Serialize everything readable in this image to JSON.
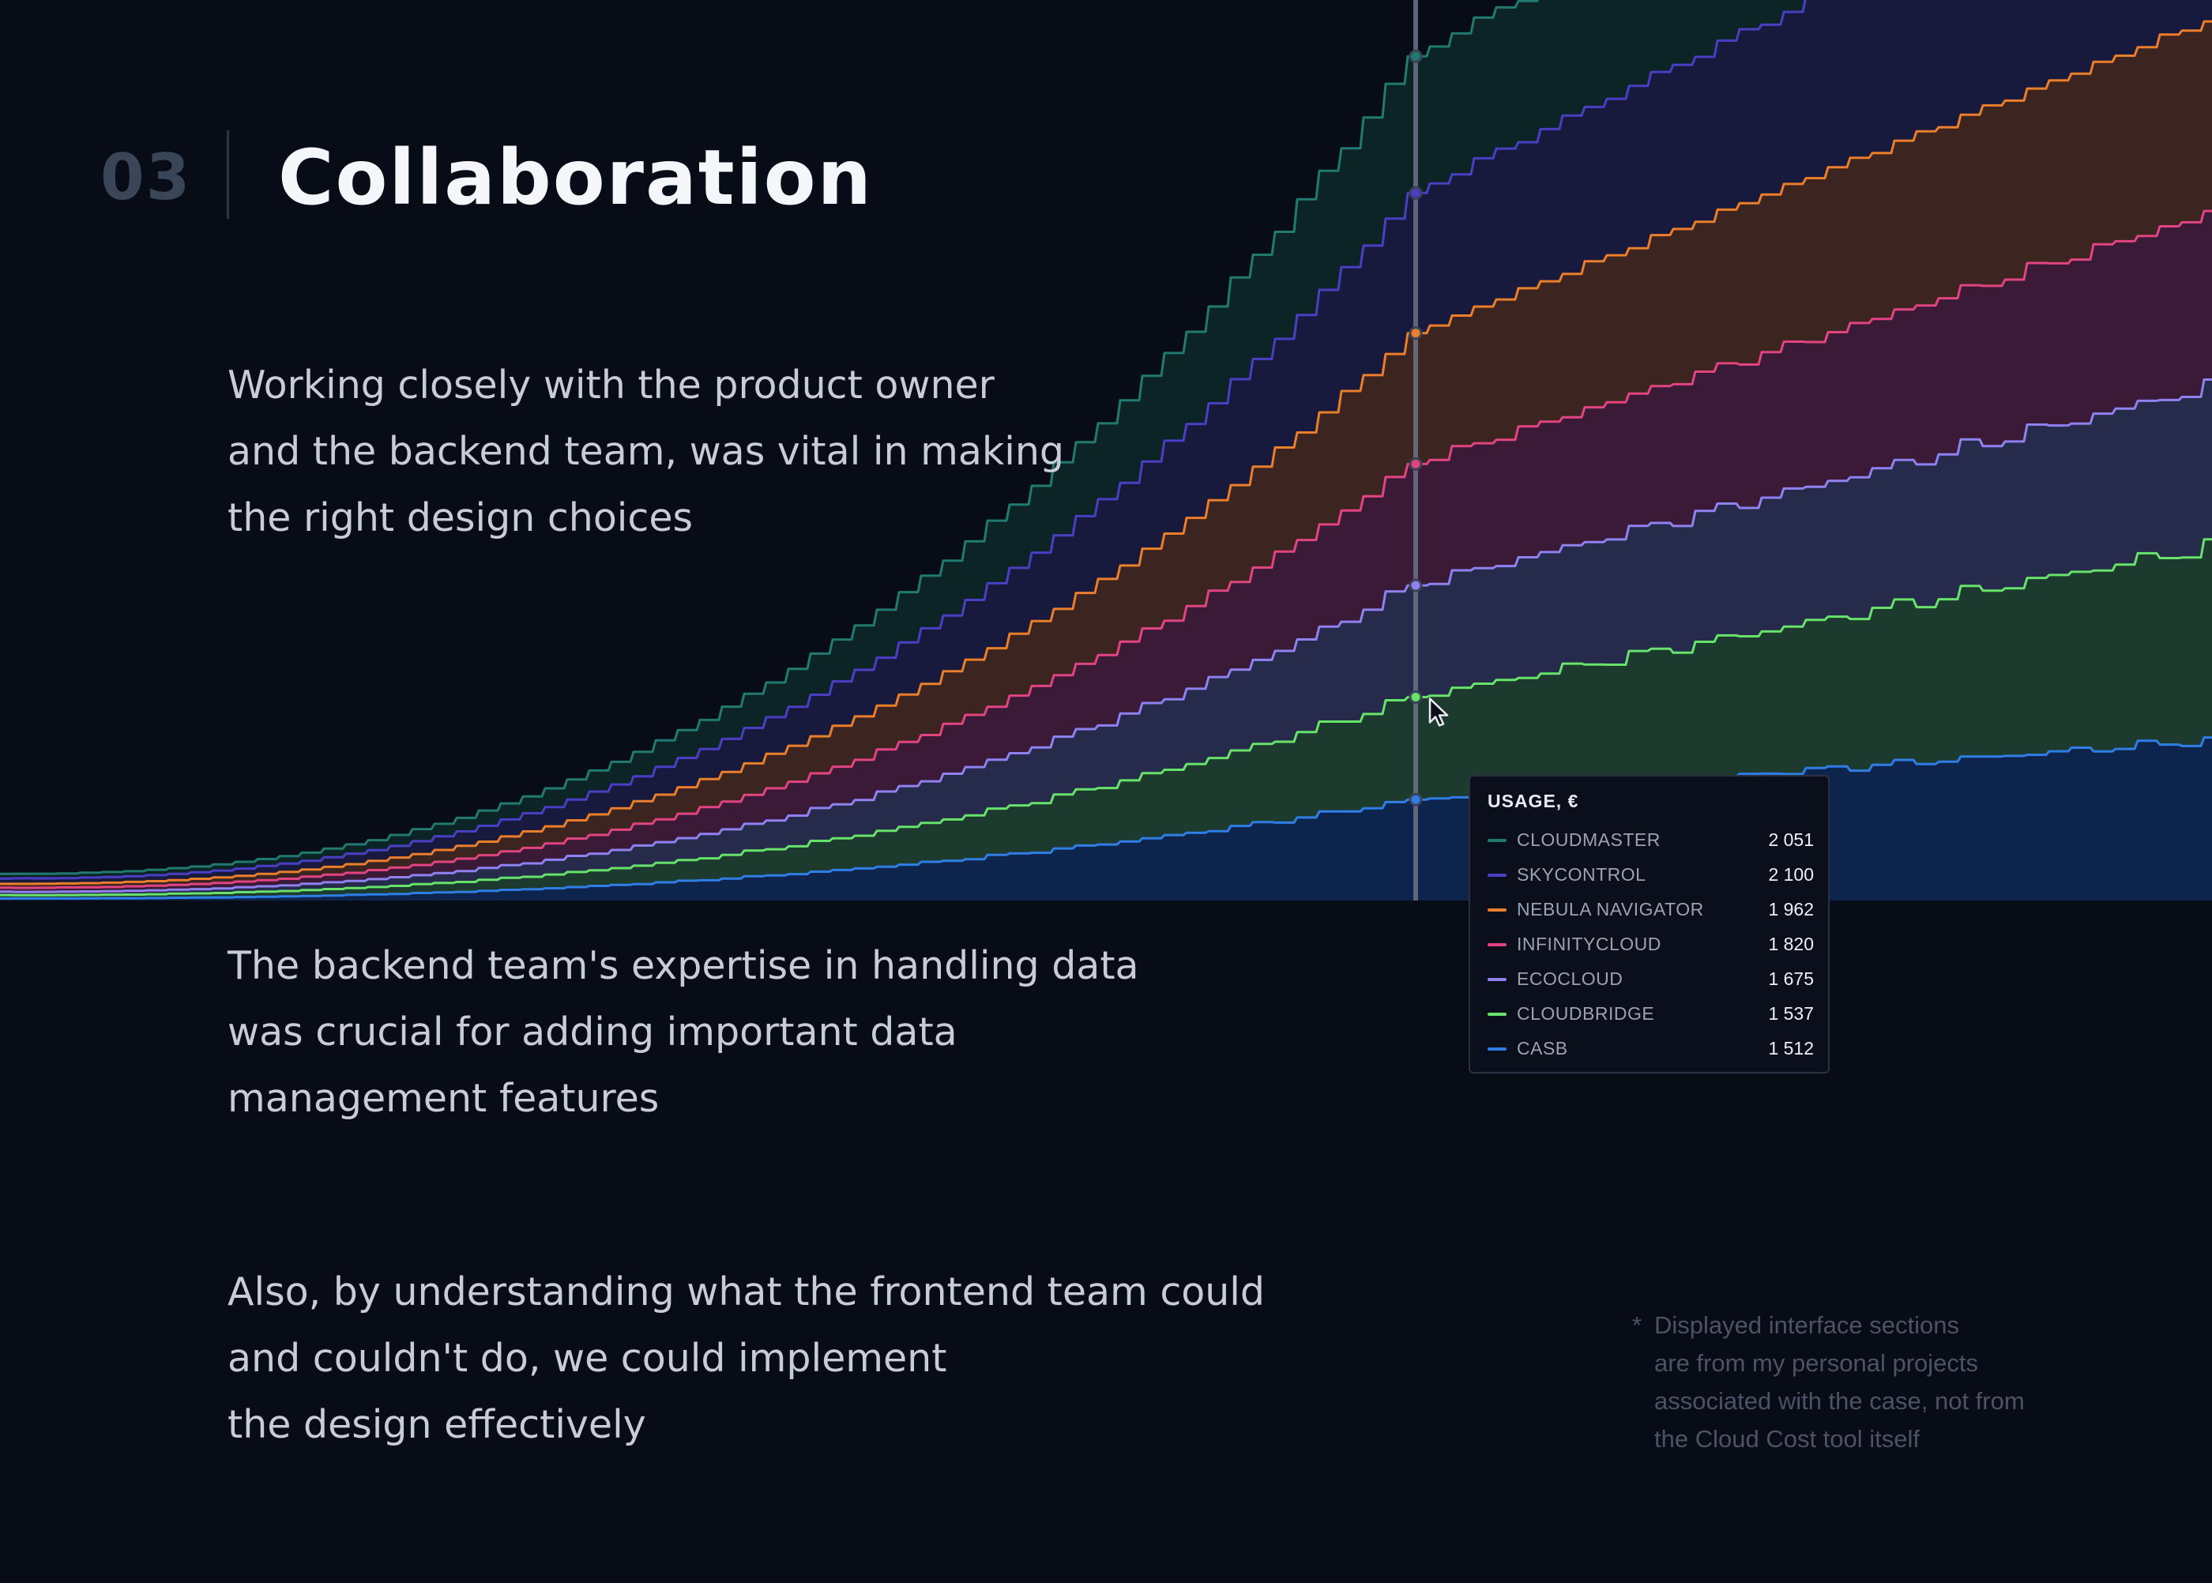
{
  "header": {
    "section_number": "03",
    "title": "Collaboration"
  },
  "paragraphs": [
    [
      "Working closely with the product owner",
      "and the backend team, was vital in making",
      "the right design choices"
    ],
    [
      "The backend team's expertise in handling data",
      "was crucial for adding important data",
      "management features"
    ],
    [
      "Also, by understanding what the frontend team could",
      "and couldn't do, we could implement",
      "the design effectively"
    ]
  ],
  "footnote": {
    "marker": "*",
    "lines": [
      "Displayed interface sections",
      "are from my personal projects",
      "associated with the case, not from",
      "the Cloud Cost tool itself"
    ]
  },
  "colors": {
    "background": "#080c16"
  },
  "chart_data": {
    "type": "area",
    "stacked": true,
    "x_index_range": [
      0,
      100
    ],
    "y_range": [
      0,
      13500
    ],
    "grid": false,
    "legend": "none",
    "hover_index": 64,
    "tooltip": {
      "title": "USAGE, €",
      "rows": [
        {
          "name": "CLOUDMASTER",
          "value": "2 051"
        },
        {
          "name": "SKYCONTROL",
          "value": "2 100"
        },
        {
          "name": "NEBULA NAVIGATOR",
          "value": "1 962"
        },
        {
          "name": "INFINITYCLOUD",
          "value": "1 820"
        },
        {
          "name": "ECOCLOUD",
          "value": "1 675"
        },
        {
          "name": "CLOUDBRIDGE",
          "value": "1 537"
        },
        {
          "name": "CASB",
          "value": "1 512"
        }
      ]
    },
    "series": [
      {
        "name": "CASB",
        "color": "#2f7ee6",
        "fill": "#0d254c",
        "start": 30,
        "hover": 1512,
        "end": 2400
      },
      {
        "name": "CLOUDBRIDGE",
        "color": "#67e26a",
        "fill": "#1d3a2f",
        "start": 50,
        "hover": 1537,
        "end": 2900
      },
      {
        "name": "ECOCLOUD",
        "color": "#8f82f0",
        "fill": "#262a4b",
        "start": 50,
        "hover": 1675,
        "end": 2400
      },
      {
        "name": "INFINITYCLOUD",
        "color": "#e24481",
        "fill": "#3a1a36",
        "start": 60,
        "hover": 1820,
        "end": 2600
      },
      {
        "name": "NEBULA NAVIGATOR",
        "color": "#ea7e2a",
        "fill": "#3c2420",
        "start": 60,
        "hover": 1962,
        "end": 2900
      },
      {
        "name": "SKYCONTROL",
        "color": "#4a3fc4",
        "fill": "#181a3d",
        "start": 80,
        "hover": 2100,
        "end": 3200
      },
      {
        "name": "CLOUDMASTER",
        "color": "#207a70",
        "fill": "#0c2426",
        "start": 70,
        "hover": 2051,
        "end": 2700
      }
    ]
  }
}
